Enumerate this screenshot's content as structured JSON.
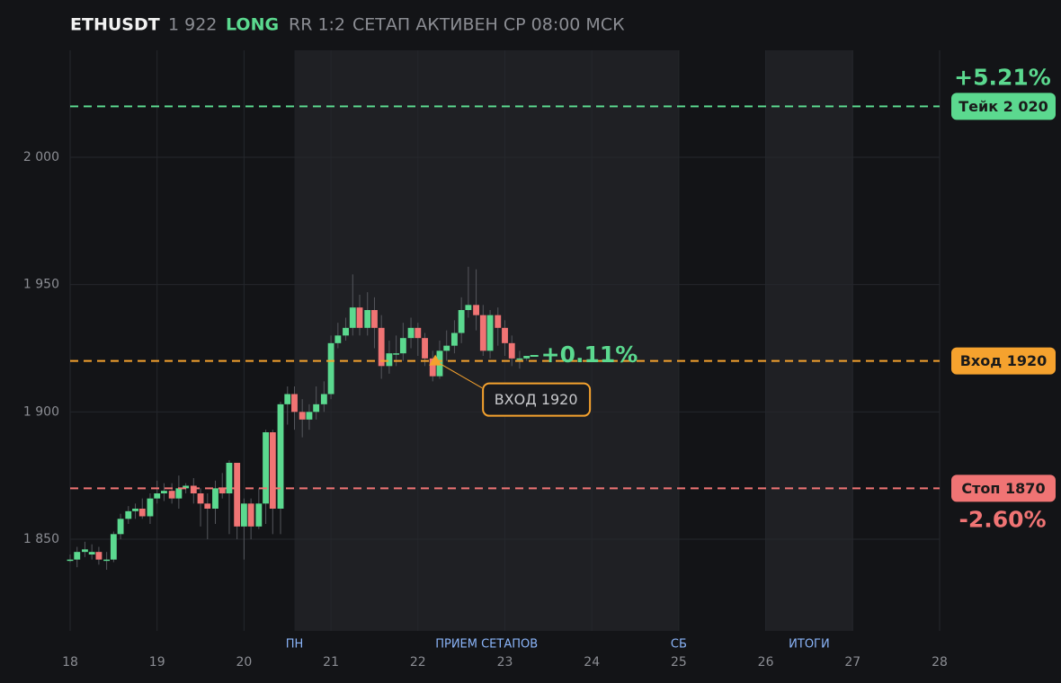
{
  "chart_data": {
    "type": "candlestick",
    "symbol": "ETHUSDT",
    "price_label": "1 922",
    "side": "LONG",
    "rr": "RR 1:2",
    "status": "СЕТАП АКТИВЕН СР 08:00 МСК",
    "up_color": "#5bd98f",
    "down_color": "#f07474",
    "xlim": [
      18,
      28
    ],
    "xticks": [
      18,
      19,
      20,
      21,
      22,
      23,
      24,
      25,
      26,
      27,
      28
    ],
    "ylim": [
      1814,
      2042
    ],
    "yticks": [
      {
        "value": 1850,
        "label": "1 850"
      },
      {
        "value": 1900,
        "label": "1 900"
      },
      {
        "value": 1950,
        "label": "1 950"
      },
      {
        "value": 2000,
        "label": "2 000"
      }
    ],
    "grid": true,
    "shaded": [
      [
        20.58,
        25
      ],
      [
        26,
        27
      ]
    ],
    "x_markers": [
      {
        "x": 20.58,
        "label": "ПН"
      },
      {
        "x": 22.79,
        "label": "ПРИЕМ СЕТАПОВ"
      },
      {
        "x": 25,
        "label": "СБ"
      },
      {
        "x": 26.5,
        "label": "ИТОГИ"
      }
    ],
    "x": [
      18,
      18.08,
      18.17,
      18.25,
      18.33,
      18.42,
      18.5,
      18.58,
      18.67,
      18.75,
      18.83,
      18.92,
      19,
      19.08,
      19.17,
      19.25,
      19.33,
      19.42,
      19.5,
      19.58,
      19.67,
      19.75,
      19.83,
      19.92,
      20,
      20.08,
      20.17,
      20.25,
      20.33,
      20.42,
      20.5,
      20.58,
      20.67,
      20.75,
      20.83,
      20.92,
      21,
      21.08,
      21.17,
      21.25,
      21.33,
      21.42,
      21.5,
      21.58,
      21.67,
      21.75,
      21.83,
      21.92,
      22,
      22.08,
      22.17,
      22.25,
      22.33,
      22.42,
      22.5,
      22.58,
      22.67,
      22.75,
      22.83,
      22.92,
      23,
      23.08,
      23.17,
      23.25
    ],
    "open": [
      1842,
      1842,
      1845,
      1844,
      1845,
      1842,
      1842,
      1852,
      1858,
      1861,
      1862,
      1859,
      1866,
      1868,
      1869,
      1866,
      1870,
      1871,
      1868,
      1864,
      1862,
      1870,
      1868,
      1880,
      1855,
      1864,
      1855,
      1864,
      1892,
      1862,
      1903,
      1907,
      1900,
      1897,
      1900,
      1903,
      1907,
      1927,
      1930,
      1933,
      1941,
      1933,
      1940,
      1933,
      1918,
      1923,
      1923,
      1929,
      1933,
      1929,
      1921,
      1914,
      1924,
      1926,
      1931,
      1940,
      1942,
      1938,
      1924,
      1938,
      1933,
      1927,
      1921,
      1921
    ],
    "high": [
      1844,
      1847,
      1849,
      1848,
      1847,
      1845,
      1853,
      1860,
      1863,
      1864,
      1866,
      1868,
      1873,
      1872,
      1872,
      1875,
      1872,
      1874,
      1870,
      1868,
      1873,
      1876,
      1881,
      1880,
      1866,
      1866,
      1870,
      1893,
      1893,
      1904,
      1910,
      1910,
      1905,
      1903,
      1910,
      1912,
      1930,
      1935,
      1937,
      1954,
      1946,
      1947,
      1945,
      1938,
      1928,
      1930,
      1935,
      1937,
      1935,
      1931,
      1924,
      1928,
      1932,
      1936,
      1945,
      1957,
      1956,
      1942,
      1940,
      1941,
      1936,
      1930,
      1924,
      1922
    ],
    "low": [
      1841,
      1839,
      1843,
      1842,
      1840,
      1838,
      1841,
      1850,
      1856,
      1858,
      1858,
      1856,
      1864,
      1865,
      1864,
      1862,
      1868,
      1864,
      1855,
      1850,
      1856,
      1866,
      1852,
      1850,
      1842,
      1850,
      1854,
      1856,
      1852,
      1852,
      1895,
      1893,
      1890,
      1893,
      1897,
      1900,
      1905,
      1925,
      1928,
      1930,
      1930,
      1930,
      1925,
      1913,
      1915,
      1918,
      1920,
      1925,
      1922,
      1918,
      1912,
      1913,
      1920,
      1923,
      1927,
      1937,
      1932,
      1922,
      1921,
      1926,
      1922,
      1918,
      1917,
      1920
    ],
    "close": [
      1842,
      1845,
      1846,
      1845,
      1842,
      1842,
      1852,
      1858,
      1861,
      1862,
      1859,
      1866,
      1868,
      1869,
      1866,
      1870,
      1871,
      1868,
      1864,
      1862,
      1870,
      1868,
      1880,
      1855,
      1864,
      1855,
      1864,
      1892,
      1862,
      1903,
      1907,
      1900,
      1897,
      1900,
      1903,
      1907,
      1927,
      1930,
      1933,
      1941,
      1933,
      1940,
      1933,
      1918,
      1923,
      1923,
      1929,
      1933,
      1929,
      1921,
      1914,
      1924,
      1926,
      1931,
      1940,
      1942,
      1938,
      1924,
      1938,
      1933,
      1927,
      1921,
      1921,
      1922
    ],
    "levels": [
      {
        "value": 2020,
        "label": "Тейк 2 020",
        "pct_label": "+5.21%",
        "color": "#5bd98f"
      },
      {
        "value": 1920,
        "label": "Вход 1920",
        "color": "#f5a22e"
      },
      {
        "value": 1870,
        "label": "Стоп 1870",
        "pct_label": "-2.60%",
        "color": "#f07474"
      }
    ],
    "current": {
      "value": 1922,
      "pct_label": "+0.11%"
    },
    "entry_marker": {
      "x": 22.2,
      "y": 1920,
      "label": "ВХОД 1920"
    }
  }
}
